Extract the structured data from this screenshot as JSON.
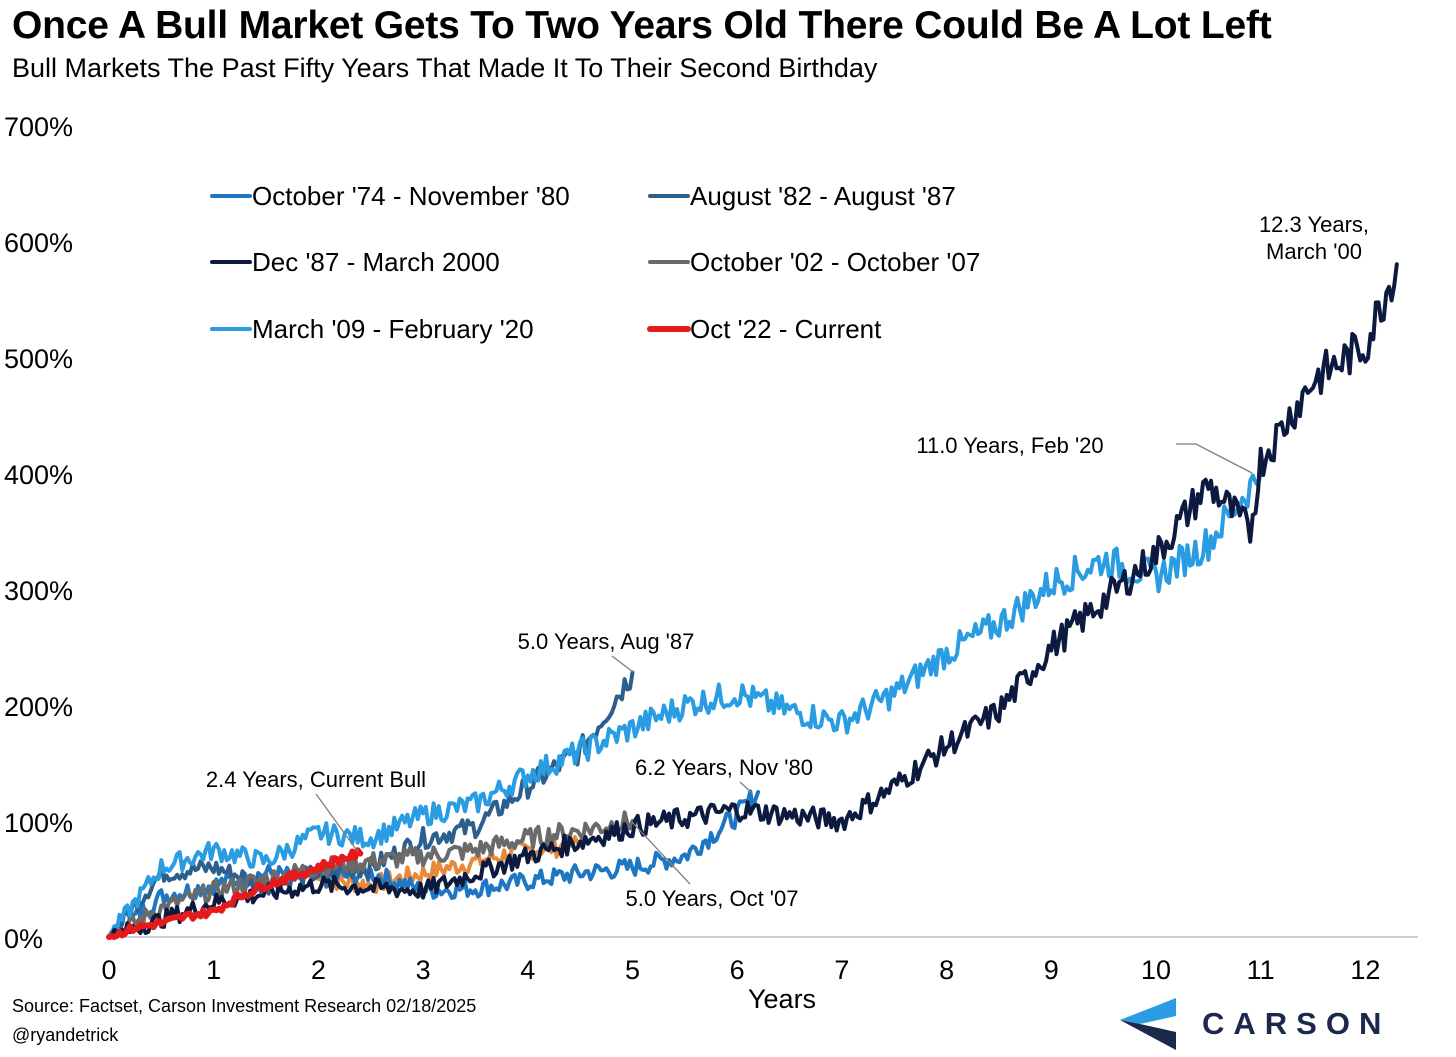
{
  "header": {
    "title": "Once A Bull Market Gets To Two Years Old There Could Be A Lot Left",
    "subtitle": "Bull Markets The Past Fifty Years That Made It To Their Second Birthday"
  },
  "footer": {
    "source": "Source: Factset, Carson Investment Research 02/18/2025",
    "handle": "@ryandetrick",
    "logo_text": "CARSON"
  },
  "chart_data": {
    "type": "line",
    "title": "Once A Bull Market Gets To Two Years Old There Could Be A Lot Left",
    "subtitle": "Bull Markets The Past Fifty Years That Made It To Their Second Birthday",
    "xlabel": "Years",
    "ylabel": "",
    "xlim": [
      0,
      12.5
    ],
    "ylim": [
      0,
      700
    ],
    "x_ticks": [
      "0",
      "1",
      "2",
      "3",
      "4",
      "5",
      "6",
      "7",
      "8",
      "9",
      "10",
      "11",
      "12"
    ],
    "y_ticks": [
      "0%",
      "100%",
      "200%",
      "300%",
      "400%",
      "500%",
      "600%",
      "700%"
    ],
    "grid": false,
    "legend_position": "top-left",
    "legend": [
      "October '74 - November '80",
      "August '82 - August '87",
      "Dec '87 - March 2000",
      "October '02 - October '07",
      "March '09 - February '20",
      "Oct '22 - Current"
    ],
    "series": [
      {
        "name": "October '74 - November '80",
        "color": "#1f77c4",
        "width": 4,
        "points": [
          [
            0,
            0
          ],
          [
            0.5,
            35
          ],
          [
            1,
            45
          ],
          [
            1.5,
            55
          ],
          [
            2,
            50
          ],
          [
            2.5,
            55
          ],
          [
            3,
            40
          ],
          [
            3.5,
            42
          ],
          [
            4,
            48
          ],
          [
            4.5,
            55
          ],
          [
            5,
            60
          ],
          [
            5.5,
            70
          ],
          [
            6,
            105
          ],
          [
            6.2,
            125
          ]
        ]
      },
      {
        "name": "August '82 - August '87",
        "color": "#2c5f8e",
        "width": 4,
        "points": [
          [
            0,
            0
          ],
          [
            0.5,
            55
          ],
          [
            1,
            60
          ],
          [
            1.5,
            45
          ],
          [
            2,
            55
          ],
          [
            2.5,
            60
          ],
          [
            3,
            85
          ],
          [
            3.5,
            95
          ],
          [
            4,
            130
          ],
          [
            4.5,
            160
          ],
          [
            5,
            228
          ]
        ]
      },
      {
        "name": "Dec '87 - March 2000",
        "color": "#0d1a40",
        "width": 4,
        "points": [
          [
            0,
            0
          ],
          [
            1,
            30
          ],
          [
            2,
            45
          ],
          [
            3,
            40
          ],
          [
            4,
            70
          ],
          [
            5,
            95
          ],
          [
            6,
            110
          ],
          [
            6.5,
            105
          ],
          [
            7,
            100
          ],
          [
            7.5,
            130
          ],
          [
            8,
            165
          ],
          [
            8.5,
            195
          ],
          [
            9,
            250
          ],
          [
            9.5,
            290
          ],
          [
            10,
            330
          ],
          [
            10.5,
            390
          ],
          [
            10.9,
            350
          ],
          [
            11,
            410
          ],
          [
            11.5,
            480
          ],
          [
            12,
            510
          ],
          [
            12.3,
            580
          ]
        ]
      },
      {
        "name": "October '02 - October '07",
        "color": "#6a6a6a",
        "width": 4,
        "points": [
          [
            0,
            0
          ],
          [
            0.5,
            25
          ],
          [
            1,
            40
          ],
          [
            1.5,
            50
          ],
          [
            2,
            60
          ],
          [
            2.5,
            65
          ],
          [
            3,
            70
          ],
          [
            3.5,
            75
          ],
          [
            4,
            85
          ],
          [
            4.5,
            92
          ],
          [
            5,
            100
          ]
        ]
      },
      {
        "name": "March '09 - February '20",
        "color": "#2a9de2",
        "width": 4,
        "points": [
          [
            0,
            0
          ],
          [
            0.5,
            60
          ],
          [
            1,
            75
          ],
          [
            1.5,
            65
          ],
          [
            2,
            90
          ],
          [
            2.5,
            85
          ],
          [
            3,
            105
          ],
          [
            3.5,
            115
          ],
          [
            4,
            140
          ],
          [
            4.5,
            160
          ],
          [
            5,
            180
          ],
          [
            5.5,
            200
          ],
          [
            6,
            210
          ],
          [
            6.5,
            195
          ],
          [
            7,
            185
          ],
          [
            7.5,
            210
          ],
          [
            8,
            245
          ],
          [
            8.5,
            270
          ],
          [
            9,
            305
          ],
          [
            9.5,
            325
          ],
          [
            10,
            310
          ],
          [
            10.5,
            340
          ],
          [
            11,
            400
          ]
        ]
      },
      {
        "name": "Oct '22 - Current",
        "color": "#e51b1b",
        "width": 6,
        "points": [
          [
            0,
            0
          ],
          [
            0.25,
            8
          ],
          [
            0.5,
            12
          ],
          [
            0.75,
            18
          ],
          [
            1,
            22
          ],
          [
            1.25,
            35
          ],
          [
            1.5,
            45
          ],
          [
            1.75,
            52
          ],
          [
            2,
            60
          ],
          [
            2.2,
            67
          ],
          [
            2.4,
            72
          ]
        ]
      },
      {
        "name": "",
        "color": "#e8893a",
        "width": 4,
        "points": [
          [
            2,
            50
          ],
          [
            2.5,
            45
          ],
          [
            3,
            55
          ],
          [
            3.5,
            65
          ],
          [
            4,
            75
          ],
          [
            4.5,
            80
          ]
        ]
      }
    ],
    "annotations": [
      {
        "text": "12.3 Years, March '00",
        "line1": "12.3 Years,",
        "line2": "March '00",
        "x": 12.3,
        "y": 580
      },
      {
        "text": "11.0 Years, Feb '20",
        "x": 11.0,
        "y": 400
      },
      {
        "text": "5.0 Years, Aug '87",
        "x": 5.0,
        "y": 228
      },
      {
        "text": "6.2 Years, Nov '80",
        "x": 6.2,
        "y": 125
      },
      {
        "text": "2.4 Years, Current Bull",
        "x": 2.4,
        "y": 72
      },
      {
        "text": "5.0 Years, Oct '07",
        "x": 5.0,
        "y": 100
      }
    ]
  }
}
